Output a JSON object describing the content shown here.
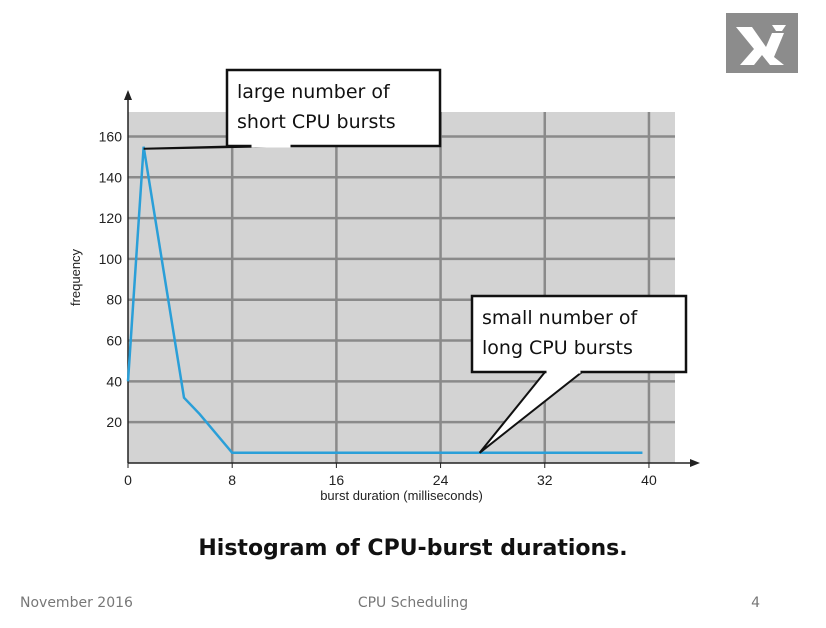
{
  "chart_data": {
    "type": "line",
    "x": [
      0,
      1.2,
      4.3,
      5.5,
      8,
      39.5
    ],
    "y": [
      40,
      155,
      32,
      24,
      5,
      5
    ],
    "xlabel": "burst duration (milliseconds)",
    "ylabel": "frequency",
    "xlim": [
      0,
      42
    ],
    "ylim": [
      0,
      172
    ],
    "x_ticks": [
      0,
      8,
      16,
      24,
      32,
      40
    ],
    "y_ticks": [
      20,
      40,
      60,
      80,
      100,
      120,
      140,
      160
    ],
    "grid": true,
    "plot_bg": "#d3d3d3",
    "line_color": "#2a9fd8",
    "annotations": [
      {
        "lines": [
          "large number of",
          "short CPU bursts"
        ],
        "point_x": 1.2,
        "point_y": 154
      },
      {
        "lines": [
          "small number of",
          "long CPU bursts"
        ],
        "point_x": 27,
        "point_y": 5
      }
    ]
  },
  "caption": "Histogram of CPU-burst durations.",
  "footer": {
    "date": "November 2016",
    "title": "CPU Scheduling",
    "page": "4"
  },
  "logo": {
    "icon": "university-logo-icon",
    "color": "#8c8c8c"
  }
}
